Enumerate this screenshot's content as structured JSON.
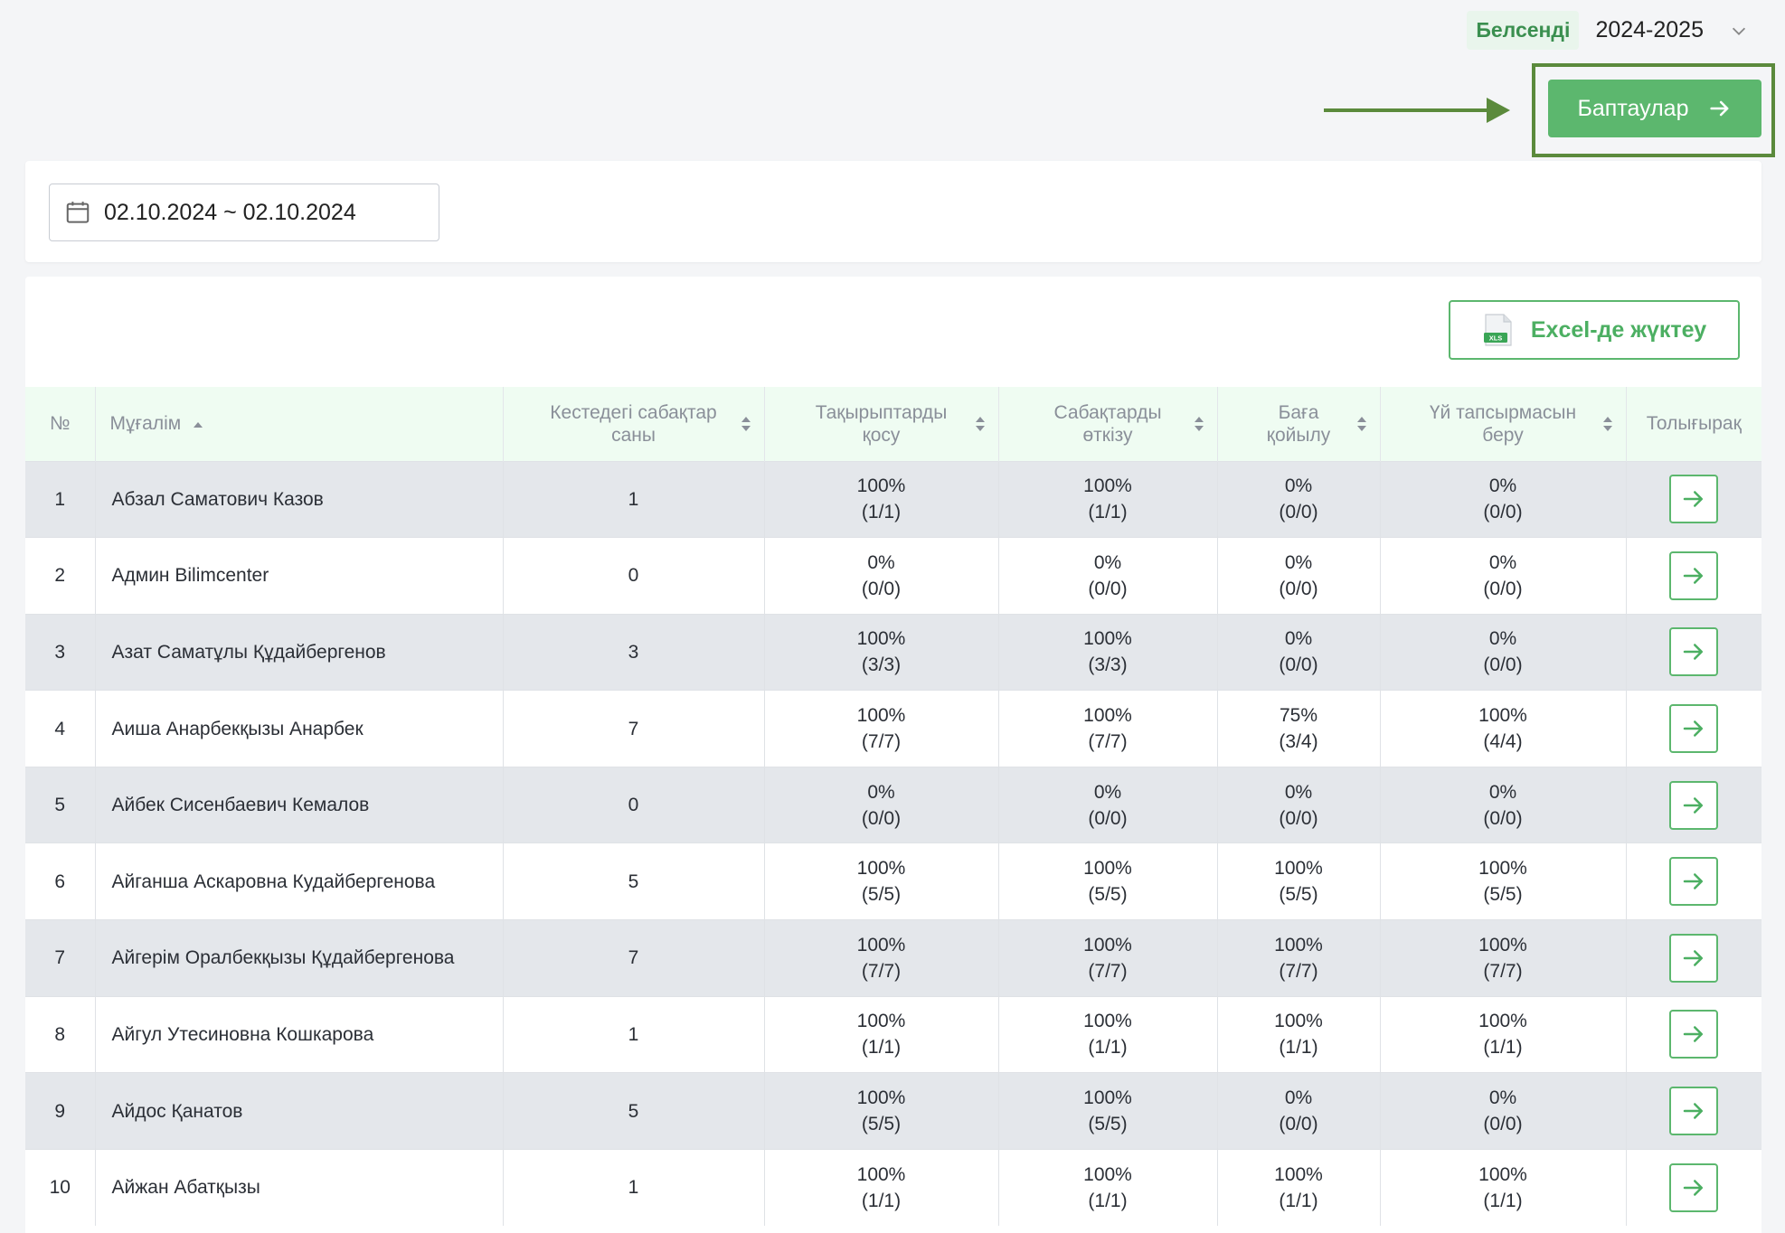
{
  "header": {
    "status_badge": "Белсенді",
    "year": "2024-2025",
    "settings_label": "Баптаулар"
  },
  "filter": {
    "date_range": "02.10.2024 ~ 02.10.2024"
  },
  "toolbar": {
    "excel_label": "Excel-де жүктеу",
    "excel_file_badge": "XLS"
  },
  "table": {
    "columns": {
      "num": "№",
      "teacher": "Мұғалім",
      "lessons": [
        "Кестедегі сабақтар",
        "саны"
      ],
      "topics": [
        "Тақырыптарды",
        "қосу"
      ],
      "conduct": [
        "Сабақтарды",
        "өткізу"
      ],
      "grading": [
        "Баға",
        "қойылу"
      ],
      "homework": [
        "Үй тапсырмасын",
        "беру"
      ],
      "more": "Толығырақ"
    },
    "rows": [
      {
        "num": "1",
        "name": "Абзал Саматович Казов",
        "lessons": "1",
        "topics": [
          "100%",
          "(1/1)"
        ],
        "conduct": [
          "100%",
          "(1/1)"
        ],
        "grading": [
          "0%",
          "(0/0)"
        ],
        "homework": [
          "0%",
          "(0/0)"
        ]
      },
      {
        "num": "2",
        "name": "Админ Bilimcenter",
        "lessons": "0",
        "topics": [
          "0%",
          "(0/0)"
        ],
        "conduct": [
          "0%",
          "(0/0)"
        ],
        "grading": [
          "0%",
          "(0/0)"
        ],
        "homework": [
          "0%",
          "(0/0)"
        ]
      },
      {
        "num": "3",
        "name": "Азат Саматұлы Құдайбергенов",
        "lessons": "3",
        "topics": [
          "100%",
          "(3/3)"
        ],
        "conduct": [
          "100%",
          "(3/3)"
        ],
        "grading": [
          "0%",
          "(0/0)"
        ],
        "homework": [
          "0%",
          "(0/0)"
        ]
      },
      {
        "num": "4",
        "name": "Аиша Анарбекқызы Анарбек",
        "lessons": "7",
        "topics": [
          "100%",
          "(7/7)"
        ],
        "conduct": [
          "100%",
          "(7/7)"
        ],
        "grading": [
          "75%",
          "(3/4)"
        ],
        "homework": [
          "100%",
          "(4/4)"
        ]
      },
      {
        "num": "5",
        "name": "Айбек Сисенбаевич Кемалов",
        "lessons": "0",
        "topics": [
          "0%",
          "(0/0)"
        ],
        "conduct": [
          "0%",
          "(0/0)"
        ],
        "grading": [
          "0%",
          "(0/0)"
        ],
        "homework": [
          "0%",
          "(0/0)"
        ]
      },
      {
        "num": "6",
        "name": "Айганша Аскаровна Кудайбергенова",
        "lessons": "5",
        "topics": [
          "100%",
          "(5/5)"
        ],
        "conduct": [
          "100%",
          "(5/5)"
        ],
        "grading": [
          "100%",
          "(5/5)"
        ],
        "homework": [
          "100%",
          "(5/5)"
        ]
      },
      {
        "num": "7",
        "name": "Айгерім Оралбекқызы Құдайбергенова",
        "lessons": "7",
        "topics": [
          "100%",
          "(7/7)"
        ],
        "conduct": [
          "100%",
          "(7/7)"
        ],
        "grading": [
          "100%",
          "(7/7)"
        ],
        "homework": [
          "100%",
          "(7/7)"
        ]
      },
      {
        "num": "8",
        "name": "Айгул Утесиновна Кошкарова",
        "lessons": "1",
        "topics": [
          "100%",
          "(1/1)"
        ],
        "conduct": [
          "100%",
          "(1/1)"
        ],
        "grading": [
          "100%",
          "(1/1)"
        ],
        "homework": [
          "100%",
          "(1/1)"
        ]
      },
      {
        "num": "9",
        "name": "Айдос Қанатов",
        "lessons": "5",
        "topics": [
          "100%",
          "(5/5)"
        ],
        "conduct": [
          "100%",
          "(5/5)"
        ],
        "grading": [
          "0%",
          "(0/0)"
        ],
        "homework": [
          "0%",
          "(0/0)"
        ]
      },
      {
        "num": "10",
        "name": "Айжан Абатқызы",
        "lessons": "1",
        "topics": [
          "100%",
          "(1/1)"
        ],
        "conduct": [
          "100%",
          "(1/1)"
        ],
        "grading": [
          "100%",
          "(1/1)"
        ],
        "homework": [
          "100%",
          "(1/1)"
        ]
      }
    ]
  },
  "colors": {
    "accent": "#5cb76e",
    "annotation": "#5b8a3c",
    "header_bg": "#effcf2",
    "row_stripe": "#e4e7eb"
  }
}
